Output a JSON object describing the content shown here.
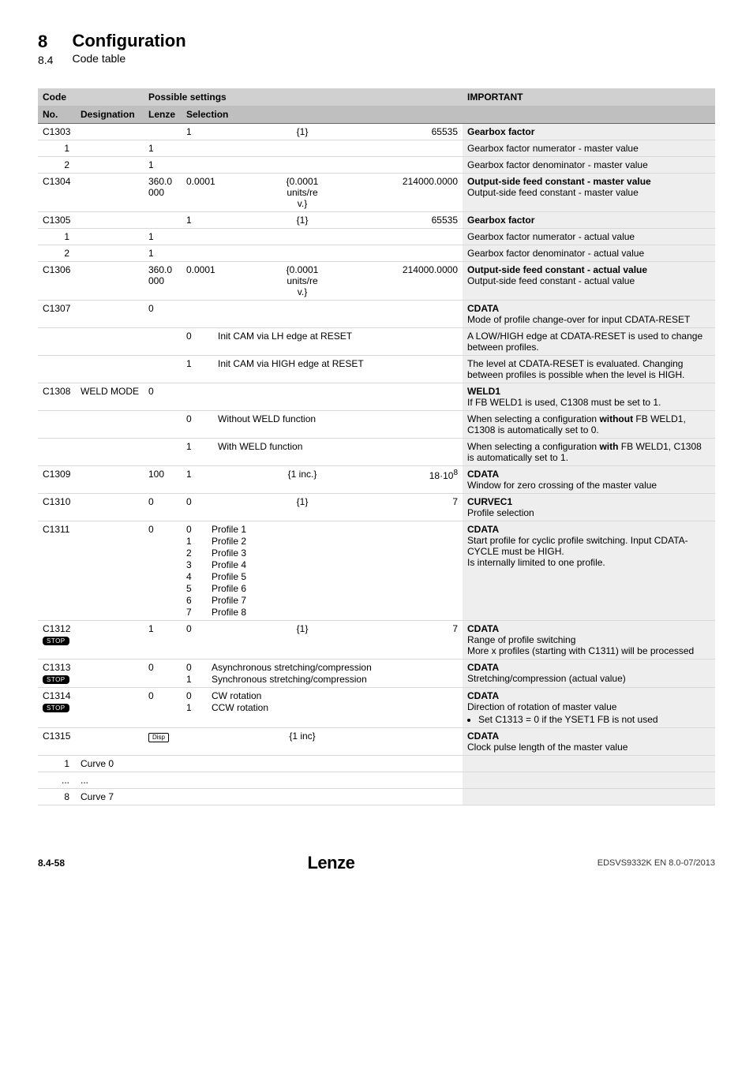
{
  "header": {
    "chapter_number": "8",
    "subchapter_number": "8.4",
    "chapter_title": "Configuration",
    "subchapter_title": "Code table"
  },
  "table": {
    "header_row1": {
      "code": "Code",
      "possible": "Possible settings",
      "important": "IMPORTANT"
    },
    "header_row2": {
      "no": "No.",
      "designation": "Designation",
      "lenze": "Lenze",
      "selection": "Selection"
    },
    "rows": [
      {
        "no": "C1303",
        "des": "",
        "lenze": "",
        "sel_l": "1",
        "sel_m": "{1}",
        "sel_r": "65535",
        "imp": "Gearbox factor",
        "imp_bold": true
      },
      {
        "no": "1",
        "indent": true,
        "lenze": "1",
        "imp": "Gearbox factor numerator - master value"
      },
      {
        "no": "2",
        "indent": true,
        "lenze": "1",
        "imp": "Gearbox factor denominator - master value"
      },
      {
        "no": "C1304",
        "lenze": "360.0\n000",
        "sel_l": "0.0001",
        "sel_m": "{0.0001\nunits/re\nv.}",
        "sel_r": "214000.0000",
        "imp_bold_first": "Output-side feed constant - master value",
        "imp_rest": "Output-side feed constant - master value"
      },
      {
        "no": "C1305",
        "sel_l": "1",
        "sel_m": "{1}",
        "sel_r": "65535",
        "imp": "Gearbox factor",
        "imp_bold": true
      },
      {
        "no": "1",
        "indent": true,
        "lenze": "1",
        "imp": "Gearbox factor numerator - actual value"
      },
      {
        "no": "2",
        "indent": true,
        "lenze": "1",
        "imp": "Gearbox factor denominator - actual value"
      },
      {
        "no": "C1306",
        "lenze": "360.0\n000",
        "sel_l": "0.0001",
        "sel_m": "{0.0001\nunits/re\nv.}",
        "sel_r": "214000.0000",
        "imp_bold_first": "Output-side feed constant - actual value",
        "imp_rest": "Output-side feed constant - actual value"
      },
      {
        "no": "C1307",
        "lenze": "0",
        "imp_bold_first": "CDATA",
        "imp_rest": "Mode of profile change-over for input CDATA-RESET"
      },
      {
        "sub": true,
        "sel_l": "0",
        "sel_m": "Init CAM via LH edge at RESET",
        "imp": "A LOW/HIGH edge at CDATA-RESET is used to change between profiles."
      },
      {
        "sub": true,
        "sel_l": "1",
        "sel_m": "Init CAM via HIGH edge at RESET",
        "imp": "The level at CDATA-RESET is evaluated. Changing between profiles is possible when the level is HIGH."
      },
      {
        "no": "C1308",
        "des": "WELD MODE",
        "lenze": "0",
        "imp_bold_first": "WELD1",
        "imp_rest": "If FB WELD1 is used, C1308 must be set to 1."
      },
      {
        "sub": true,
        "sel_l": "0",
        "sel_m": "Without WELD function",
        "imp_html": "When selecting a configuration <b>without</b> FB WELD1, C1308 is automatically set to 0."
      },
      {
        "sub": true,
        "sel_l": "1",
        "sel_m": "With WELD function",
        "imp_html": "When selecting a configuration <b>with</b> FB WELD1, C1308 is automatically set to 1."
      },
      {
        "no": "C1309",
        "lenze": "100",
        "sel_l": "1",
        "sel_m": "{1 inc.}",
        "sel_r_html": "18·10<sup>8</sup>",
        "imp_bold_first": "CDATA",
        "imp_rest": "Window for zero crossing of the master value"
      },
      {
        "no": "C1310",
        "lenze": "0",
        "sel_l": "0",
        "sel_m": "{1}",
        "sel_r": "7",
        "imp_bold_first": "CURVEC1",
        "imp_rest": "Profile selection"
      },
      {
        "no": "C1311",
        "lenze": "0",
        "profiles": [
          [
            "0",
            "Profile 1"
          ],
          [
            "1",
            "Profile 2"
          ],
          [
            "2",
            "Profile 3"
          ],
          [
            "3",
            "Profile 4"
          ],
          [
            "4",
            "Profile 5"
          ],
          [
            "5",
            "Profile 6"
          ],
          [
            "6",
            "Profile 7"
          ],
          [
            "7",
            "Profile 8"
          ]
        ],
        "imp_bold_first": "CDATA",
        "imp_rest": "Start profile for cyclic profile switching. Input CDATA-CYCLE must be HIGH.\nIs internally limited to one profile."
      },
      {
        "no": "C1312",
        "stop": true,
        "lenze": "1",
        "sel_l": "0",
        "sel_m": "{1}",
        "sel_r": "7",
        "imp_bold_first": "CDATA",
        "imp_rest": "Range of profile switching\nMore x profiles (starting with C1311) will be processed"
      },
      {
        "no": "C1313",
        "stop": true,
        "lenze": "0",
        "sel_two": [
          [
            "0",
            "Asynchronous stretching/compression"
          ],
          [
            "1",
            "Synchronous stretching/compression"
          ]
        ],
        "imp_bold_first": "CDATA",
        "imp_rest": "Stretching/compression (actual value)"
      },
      {
        "no": "C1314",
        "stop": true,
        "lenze": "0",
        "sel_two": [
          [
            "0",
            "CW rotation"
          ],
          [
            "1",
            "CCW rotation"
          ]
        ],
        "imp_bold_first": "CDATA",
        "imp_rest_html": "Direction of rotation of master value<ul class='bul'><li>Set C1313 = 0 if the YSET1 FB is not used</li></ul>"
      },
      {
        "no": "C1315",
        "disp": true,
        "sel_m": "{1 inc}",
        "imp_bold_first": "CDATA",
        "imp_rest": "Clock pulse length of the master value"
      },
      {
        "no": "1",
        "indent": true,
        "des": "Curve 0"
      },
      {
        "no": "...",
        "indent": true,
        "des": "..."
      },
      {
        "no": "8",
        "indent": true,
        "des": "Curve 7"
      }
    ]
  },
  "footer": {
    "page": "8.4-58",
    "logo": "Lenze",
    "doc": "EDSVS9332K EN 8.0-07/2013"
  }
}
